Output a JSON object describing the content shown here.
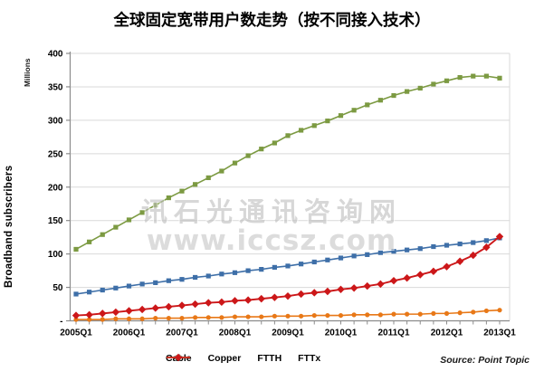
{
  "title": "全球固定宽带用户数走势（按不同接入技术）",
  "y_axis": {
    "label": "Broadband subscribers",
    "units_label": "Millions",
    "tick_labels": [
      "-",
      "50",
      "100",
      "150",
      "200",
      "250",
      "300",
      "350",
      "400"
    ],
    "tick_values": [
      0,
      50,
      100,
      150,
      200,
      250,
      300,
      350,
      400
    ]
  },
  "x_axis": {
    "tick_labels": [
      "2005Q1",
      "2006Q1",
      "2007Q1",
      "2008Q1",
      "2009Q1",
      "2010Q1",
      "2011Q1",
      "2012Q1",
      "2013Q1"
    ]
  },
  "watermark": {
    "line1": "讯石光通讯咨询网",
    "line2": "www.iccsz.com"
  },
  "source_label": "Source: Point Topic",
  "colors": {
    "grid": "#D9D9D9",
    "axis": "#8C8C8C",
    "cable": "#3E6FA8",
    "copper": "#7C9A42",
    "ftth": "#E87817",
    "fttx": "#CC1719"
  },
  "chart_data": {
    "type": "line",
    "title": "全球固定宽带用户数走势（按不同接入技术）",
    "ylabel": "Broadband subscribers (Millions)",
    "ylim": [
      0,
      400
    ],
    "grid": true,
    "legend_position": "bottom",
    "x": [
      "2005Q1",
      "2005Q2",
      "2005Q3",
      "2005Q4",
      "2006Q1",
      "2006Q2",
      "2006Q3",
      "2006Q4",
      "2007Q1",
      "2007Q2",
      "2007Q3",
      "2007Q4",
      "2008Q1",
      "2008Q2",
      "2008Q3",
      "2008Q4",
      "2009Q1",
      "2009Q2",
      "2009Q3",
      "2009Q4",
      "2010Q1",
      "2010Q2",
      "2010Q3",
      "2010Q4",
      "2011Q1",
      "2011Q2",
      "2011Q3",
      "2011Q4",
      "2012Q1",
      "2012Q2",
      "2012Q3",
      "2012Q4",
      "2013Q1"
    ],
    "series": [
      {
        "name": "Cable",
        "color": "#3E6FA8",
        "marker": "square",
        "values": [
          40,
          43,
          46,
          49,
          52,
          55,
          57,
          60,
          62,
          65,
          67,
          70,
          72,
          75,
          77,
          80,
          82,
          85,
          88,
          91,
          94,
          97,
          99,
          102,
          104,
          106,
          108,
          111,
          113,
          115,
          117,
          120,
          124
        ]
      },
      {
        "name": "Copper",
        "color": "#7C9A42",
        "marker": "square",
        "values": [
          107,
          118,
          129,
          140,
          151,
          162,
          173,
          184,
          194,
          204,
          214,
          224,
          236,
          247,
          257,
          266,
          277,
          285,
          292,
          299,
          307,
          315,
          323,
          330,
          337,
          343,
          348,
          354,
          359,
          364,
          366,
          366,
          363
        ]
      },
      {
        "name": "FTTH",
        "color": "#E87817",
        "marker": "circle",
        "values": [
          2,
          2,
          2,
          3,
          3,
          3,
          4,
          4,
          4,
          5,
          5,
          5,
          6,
          6,
          6,
          7,
          7,
          7,
          8,
          8,
          8,
          9,
          9,
          9,
          10,
          10,
          10,
          11,
          11,
          12,
          13,
          15,
          16
        ]
      },
      {
        "name": "FTTx",
        "color": "#CC1719",
        "marker": "diamond",
        "values": [
          8,
          9,
          11,
          13,
          15,
          17,
          19,
          21,
          23,
          25,
          27,
          28,
          30,
          31,
          33,
          35,
          37,
          40,
          42,
          44,
          47,
          49,
          52,
          55,
          60,
          64,
          69,
          74,
          81,
          89,
          98,
          110,
          126
        ]
      }
    ]
  }
}
